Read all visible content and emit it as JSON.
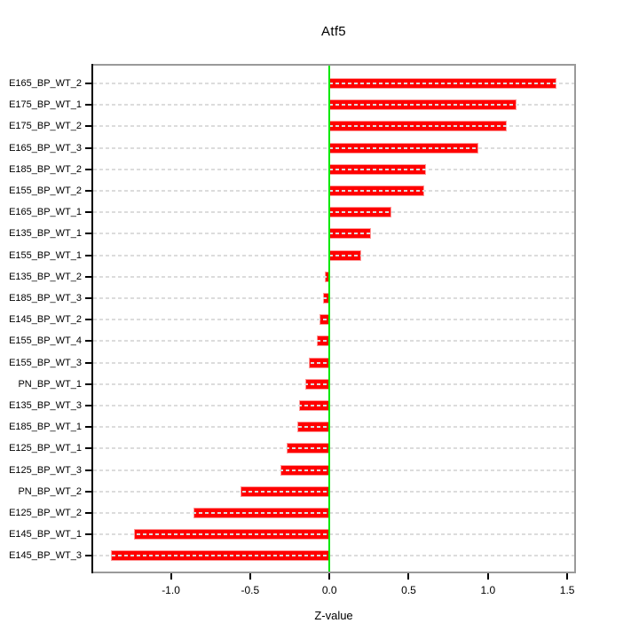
{
  "title": "Atf5",
  "chart_data": {
    "type": "bar",
    "orientation": "horizontal",
    "title": "Atf5",
    "xlabel": "Z-value",
    "ylabel": "",
    "categories": [
      "E165_BP_WT_2",
      "E175_BP_WT_1",
      "E175_BP_WT_2",
      "E165_BP_WT_3",
      "E185_BP_WT_2",
      "E155_BP_WT_2",
      "E165_BP_WT_1",
      "E135_BP_WT_1",
      "E155_BP_WT_1",
      "E135_BP_WT_2",
      "E185_BP_WT_3",
      "E145_BP_WT_2",
      "E155_BP_WT_4",
      "E155_BP_WT_3",
      "PN_BP_WT_1",
      "E135_BP_WT_3",
      "E185_BP_WT_1",
      "E125_BP_WT_1",
      "E125_BP_WT_3",
      "PN_BP_WT_2",
      "E125_BP_WT_2",
      "E145_BP_WT_1",
      "E145_BP_WT_3"
    ],
    "values": [
      1.43,
      1.18,
      1.12,
      0.94,
      0.61,
      0.6,
      0.39,
      0.26,
      0.2,
      -0.03,
      -0.04,
      -0.06,
      -0.08,
      -0.13,
      -0.15,
      -0.19,
      -0.2,
      -0.27,
      -0.31,
      -0.56,
      -0.86,
      -1.23,
      -1.38
    ],
    "xlim": [
      -1.49,
      1.544
    ],
    "xticks": [
      -1.0,
      -0.5,
      0.0,
      0.5,
      1.0,
      1.5
    ],
    "xtick_labels": [
      "-1.0",
      "-0.5",
      "0.0",
      "0.5",
      "1.0",
      "1.5"
    ],
    "zero_reference_line": 0.0,
    "grid": "horizontal-dashed-per-category",
    "legend": "none",
    "colors": {
      "bar_fill": "#ff0000",
      "bar_edge": "#ff9999",
      "zero_line": "#00e800",
      "grid_line": "#dcdcdc",
      "box_border": "#9a9a9a",
      "axis": "#000000",
      "text": "#000000",
      "background": "#ffffff"
    }
  }
}
